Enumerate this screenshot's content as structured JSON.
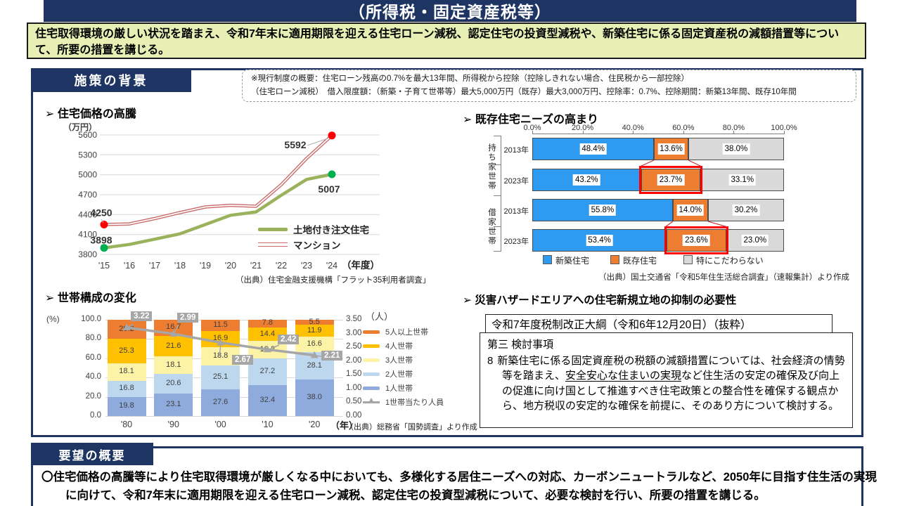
{
  "theme": {
    "navy": "#1e3462",
    "summary_bg": "#e7efb5",
    "grid": "#d9d9d9",
    "axis": "#808080",
    "highlight_red": "#ff0000"
  },
  "title_bar": {
    "text": "（所得税・固定資産税等）"
  },
  "summary_box": {
    "text": "住宅取得環境の厳しい状況を踏まえ、令和7年末に適用期限を迎える住宅ローン減税、認定住宅の投資型減税や、新築住宅に係る固定資産税の減額措置等について、所要の措置を講じる。"
  },
  "background_section": {
    "header": "施策の背景",
    "note_line1": "※現行制度の概要：住宅ローン残高の0.7%を最大13年間、所得税から控除（控除しきれない場合、住民税から一部控除）",
    "note_line2": "（住宅ローン減税）　借入限度額：（新築・子育て世帯等）最大5,000万円（既存）最大3,000万円、控除率：0.7%、控除期間：新築13年間、既存10年間"
  },
  "chart_data": [
    {
      "id": "housing-price",
      "type": "line",
      "title": "➢ 住宅価格の高騰",
      "unit_label": "（万円）",
      "x_unit_label": "（年度）",
      "x": [
        "'15",
        "'16",
        "'17",
        "'18",
        "'19",
        "'20",
        "'21",
        "'22",
        "'23",
        "'24"
      ],
      "ylim": [
        3800,
        5600
      ],
      "yticks": [
        3800,
        4100,
        4400,
        4700,
        5000,
        5300,
        5600
      ],
      "series": [
        {
          "name": "土地付き注文住宅",
          "style": "solid",
          "color": "#9ab25c",
          "marker_color": "#00b050",
          "values": [
            3898,
            3950,
            4030,
            4110,
            4250,
            4390,
            4440,
            4690,
            4930,
            5007
          ],
          "first_label": "3898",
          "last_label": "5007"
        },
        {
          "name": "マンション",
          "style": "double",
          "color": "#c96a6a",
          "marker_color": "#ff0000",
          "values": [
            4250,
            4260,
            4340,
            4430,
            4515,
            4540,
            4525,
            4850,
            5245,
            5592
          ],
          "first_label": "4250",
          "last_label": "5592"
        }
      ],
      "source": "（出典）住宅金融支援機構「フラット35利用者調査」"
    },
    {
      "id": "household-composition",
      "type": "stacked-bar-line",
      "title": "➢ 世帯構成の変化",
      "left_unit": "(%)",
      "right_unit": "（人）",
      "x_unit": "（年）",
      "categories": [
        "'80",
        "'90",
        "'00",
        "'10",
        "'20"
      ],
      "left_ticks": [
        0,
        20,
        40,
        60,
        80,
        100
      ],
      "right_ticks": [
        0,
        0.5,
        1,
        1.5,
        2,
        2.5,
        3,
        3.5
      ],
      "left_max": 100,
      "right_max": 3.5,
      "series": [
        {
          "name": "1人世帯",
          "color": "#8faadc",
          "values": [
            19.8,
            23.1,
            27.6,
            32.4,
            38.0
          ]
        },
        {
          "name": "2人世帯",
          "color": "#bdd7ee",
          "values": [
            16.8,
            20.6,
            25.1,
            27.2,
            28.1
          ]
        },
        {
          "name": "3人世帯",
          "color": "#fdf3a7",
          "values": [
            18.1,
            18.1,
            18.8,
            18.2,
            16.6
          ]
        },
        {
          "name": "4人世帯",
          "color": "#ffc000",
          "values": [
            25.3,
            21.6,
            16.9,
            14.4,
            11.9
          ]
        },
        {
          "name": "5人以上世帯",
          "color": "#ed7d31",
          "values": [
            20.2,
            16.7,
            11.5,
            7.8,
            5.5
          ]
        }
      ],
      "line": {
        "name": "1世帯当たり人員",
        "color": "#a6a6a6",
        "values": [
          3.22,
          2.99,
          2.67,
          2.42,
          2.21
        ]
      },
      "source": "（出典）総務省「国勢調査」より作成"
    },
    {
      "id": "existing-home-needs",
      "type": "horizontal-stacked-bar",
      "title": "➢ 既存住宅ニーズの高まり",
      "xticks": [
        "0.0%",
        "20.0%",
        "40.0%",
        "60.0%",
        "80.0%",
        "100.0%"
      ],
      "legend": [
        {
          "name": "新築住宅",
          "color": "#2e9bf0"
        },
        {
          "name": "既存住宅",
          "color": "#ed7d31"
        },
        {
          "name": "特にこだわらない",
          "color": "#d9d9d9"
        }
      ],
      "groups": [
        {
          "label": "持ち家世帯",
          "rows": [
            {
              "year": "2013年",
              "values": [
                48.4,
                13.6,
                38.0
              ],
              "highlight": false
            },
            {
              "year": "2023年",
              "values": [
                43.2,
                23.7,
                33.1
              ],
              "highlight": true
            }
          ]
        },
        {
          "label": "借家世帯",
          "rows": [
            {
              "year": "2013年",
              "values": [
                55.8,
                14.0,
                30.2
              ],
              "highlight": false
            },
            {
              "year": "2023年",
              "values": [
                53.4,
                23.6,
                23.0
              ],
              "highlight": true
            }
          ]
        }
      ],
      "source": "（出典）国土交通省「令和5年住生活総合調査」（速報集計）より作成"
    }
  ],
  "hazard": {
    "heading": "➢ 災害ハザードエリアへの住宅新規立地の抑制の必要性"
  },
  "taikou_box": {
    "title": "令和7年度税制改正大綱（令和6年12月20日）（抜粋）",
    "line1": "第三 検討事項",
    "item_no": "8",
    "body_pre": "新築住宅に係る固定資産税の税額の減額措置については、社会経済の情勢等を踏まえ、",
    "body_underline": "安全安心な住まいの実現",
    "body_post": "など住生活の安定の確保及び向上の促進に向け国として推進すべき住宅政策との整合性を確保する観点から、地方税収の安定的な確保を前提に、そのあり方について検討する。"
  },
  "request_section": {
    "header": "要望の概要",
    "text": "〇住宅価格の高騰等により住宅取得環境が厳しくなる中においても、多様化する居住ニーズへの対応、カーボンニュートラルなど、2050年に目指す住生活の実現に向けて、令和7年末に適用期限を迎える住宅ローン減税、認定住宅の投資型減税について、必要な検討を行い、所要の措置を講じる。"
  }
}
